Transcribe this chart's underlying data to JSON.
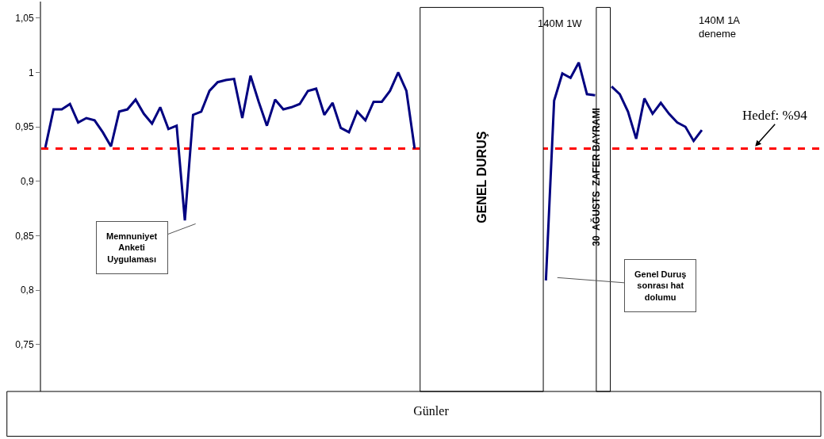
{
  "chart_data": {
    "type": "line",
    "xlabel": "Günler",
    "categories": [
      null,
      null,
      null,
      null,
      null,
      null,
      null,
      null,
      null,
      null,
      null,
      null,
      null,
      null,
      null,
      null,
      null,
      null,
      null,
      null,
      null,
      null,
      null,
      null,
      null,
      null,
      null,
      null,
      null,
      null,
      null,
      null,
      null,
      null,
      null,
      null,
      null,
      null,
      null,
      null,
      null,
      null,
      null,
      null,
      null,
      null,
      null,
      null,
      null,
      null,
      null,
      null,
      null,
      null,
      null,
      null,
      null,
      null,
      null,
      null,
      null,
      null,
      null,
      null,
      null,
      null,
      null,
      null,
      null,
      null,
      null,
      null,
      null,
      null,
      null,
      null,
      null,
      null,
      null,
      null,
      null,
      null,
      null,
      null,
      null,
      null,
      null,
      null,
      null,
      null,
      null,
      null,
      null,
      null,
      null
    ],
    "series": [
      {
        "color": "#000080",
        "values": [
          0.931,
          0.966,
          0.966,
          0.971,
          0.954,
          0.958,
          0.956,
          0.945,
          0.932,
          0.964,
          0.966,
          0.975,
          0.962,
          0.953,
          0.968,
          0.948,
          0.951,
          0.864,
          0.961,
          0.964,
          0.983,
          0.991,
          0.993,
          0.994,
          0.958,
          0.997,
          0.973,
          0.951,
          0.975,
          0.966,
          0.968,
          0.971,
          0.983,
          0.985,
          0.961,
          0.972,
          0.949,
          0.945,
          0.964,
          0.956,
          0.973,
          0.973,
          0.983,
          1.0,
          0.983,
          0.93,
          null,
          null,
          null,
          null,
          null,
          null,
          null,
          null,
          null,
          null,
          null,
          null,
          null,
          null,
          null,
          0.809,
          0.974,
          0.999,
          0.995,
          1.009,
          0.98,
          0.979,
          null,
          0.987,
          0.98,
          0.964,
          0.939,
          0.976,
          0.962,
          0.972,
          0.962,
          0.954,
          0.95,
          0.937,
          0.947,
          null,
          null,
          null,
          null,
          null,
          null,
          null,
          null,
          null,
          null,
          null,
          null,
          null,
          null
        ]
      }
    ],
    "ylim": [
      0.707,
      1.065
    ],
    "yticks": [
      {
        "value": 0.75,
        "label": "0,75"
      },
      {
        "value": 0.8,
        "label": "0,8"
      },
      {
        "value": 0.85,
        "label": "0,85"
      },
      {
        "value": 0.9,
        "label": "0,9"
      },
      {
        "value": 0.95,
        "label": "0,95"
      },
      {
        "value": 1,
        "label": "1"
      },
      {
        "value": 1.05,
        "label": "1,05"
      }
    ],
    "ref_lines": [
      {
        "axis": "y",
        "value": 0.93,
        "label": "Hedef: %94",
        "color": "#ff0000",
        "line_style": "dashed"
      }
    ],
    "annotations": [
      "Memnuniyet\nAnketi\nUygulaması",
      "Genel Duruş\nsonrası hat\ndolumu",
      "140M 1W",
      "140M 1A\ndeneme",
      "GENEL DURUŞ",
      "30  AĞUSTS  ZAFER BAYRAMI"
    ],
    "grid": false,
    "marker": "none",
    "line_style": "solid",
    "tick_labels": "y"
  }
}
